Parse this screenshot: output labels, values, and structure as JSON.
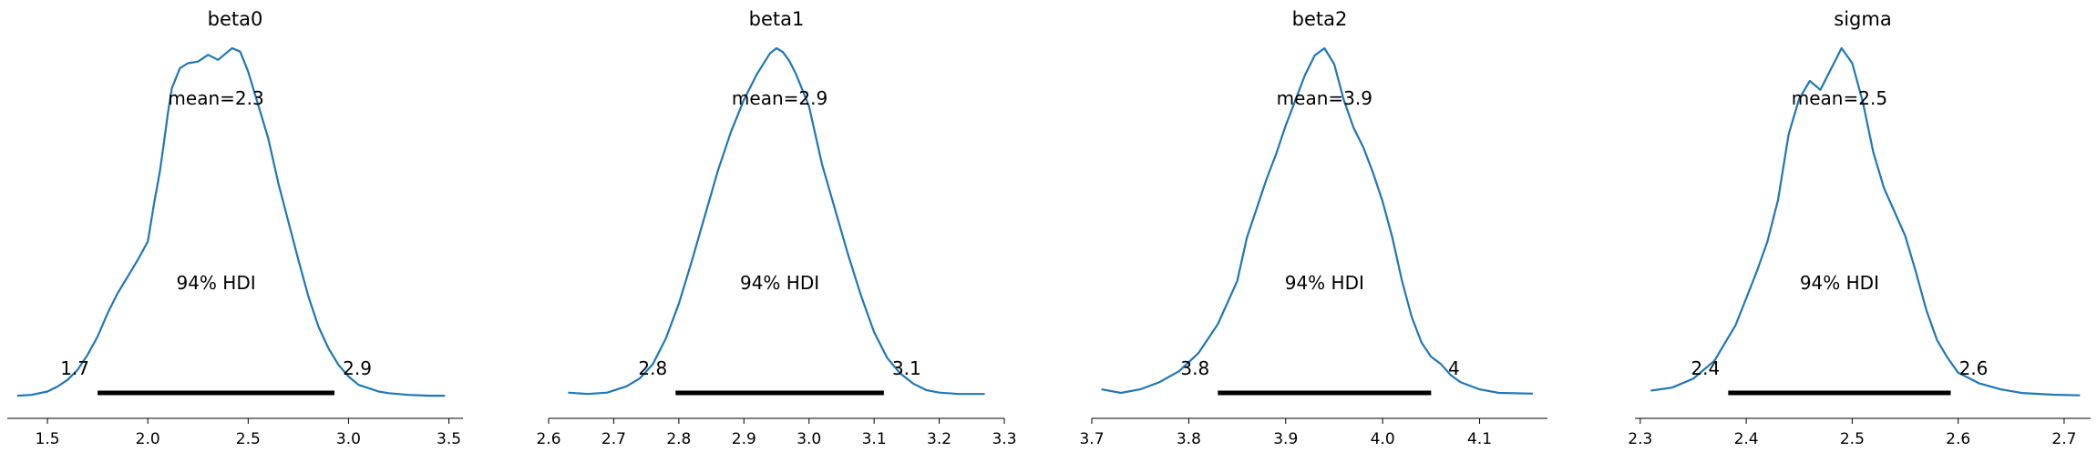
{
  "chart_data": [
    {
      "type": "area",
      "title": "beta0",
      "mean_label": "mean=2.3",
      "hdi_label": "94% HDI",
      "hdi_low_label": "1.7",
      "hdi_high_label": "2.9",
      "hdi": [
        1.75,
        2.93
      ],
      "xlim": [
        1.3,
        3.57
      ],
      "xticks": [
        1.5,
        2.0,
        2.5,
        3.0,
        3.5
      ],
      "xtick_labels": [
        "1.5",
        "2.0",
        "2.5",
        "3.0",
        "3.5"
      ],
      "x": [
        1.35,
        1.42,
        1.5,
        1.55,
        1.6,
        1.65,
        1.7,
        1.75,
        1.8,
        1.85,
        1.9,
        1.95,
        2.0,
        2.03,
        2.06,
        2.08,
        2.1,
        2.12,
        2.16,
        2.2,
        2.25,
        2.3,
        2.35,
        2.38,
        2.42,
        2.46,
        2.5,
        2.55,
        2.6,
        2.65,
        2.7,
        2.75,
        2.8,
        2.85,
        2.9,
        2.95,
        3.0,
        3.05,
        3.1,
        3.15,
        3.2,
        3.3,
        3.4,
        3.48
      ],
      "y": [
        0.005,
        0.01,
        0.03,
        0.06,
        0.1,
        0.16,
        0.25,
        0.36,
        0.5,
        0.62,
        0.72,
        0.82,
        0.93,
        1.15,
        1.35,
        1.52,
        1.7,
        1.85,
        1.97,
        2.0,
        2.01,
        2.05,
        2.02,
        2.05,
        2.09,
        2.07,
        1.95,
        1.75,
        1.55,
        1.28,
        1.05,
        0.82,
        0.6,
        0.42,
        0.29,
        0.19,
        0.12,
        0.07,
        0.05,
        0.03,
        0.02,
        0.01,
        0.005,
        0.005
      ]
    },
    {
      "type": "area",
      "title": "beta1",
      "mean_label": "mean=2.9",
      "hdi_label": "94% HDI",
      "hdi_low_label": "2.8",
      "hdi_high_label": "3.1",
      "hdi": [
        2.795,
        3.115
      ],
      "xlim": [
        2.6,
        3.3
      ],
      "xticks": [
        2.6,
        2.7,
        2.8,
        2.9,
        3.0,
        3.1,
        3.2,
        3.3
      ],
      "xtick_labels": [
        "2.6",
        "2.7",
        "2.8",
        "2.9",
        "3.0",
        "3.1",
        "3.2",
        "3.3"
      ],
      "x": [
        2.63,
        2.66,
        2.69,
        2.72,
        2.74,
        2.76,
        2.78,
        2.8,
        2.82,
        2.84,
        2.86,
        2.88,
        2.9,
        2.92,
        2.94,
        2.95,
        2.96,
        2.97,
        2.98,
        3.0,
        3.02,
        3.04,
        3.06,
        3.08,
        3.1,
        3.12,
        3.14,
        3.16,
        3.18,
        3.2,
        3.23,
        3.27
      ],
      "y": [
        0.03,
        0.02,
        0.03,
        0.08,
        0.14,
        0.25,
        0.45,
        0.72,
        1.05,
        1.4,
        1.75,
        2.05,
        2.3,
        2.5,
        2.66,
        2.7,
        2.67,
        2.6,
        2.5,
        2.25,
        1.8,
        1.45,
        1.1,
        0.78,
        0.5,
        0.3,
        0.18,
        0.1,
        0.05,
        0.03,
        0.02,
        0.02
      ]
    },
    {
      "type": "area",
      "title": "beta2",
      "mean_label": "mean=3.9",
      "hdi_label": "94% HDI",
      "hdi_low_label": "3.8",
      "hdi_high_label": "4",
      "hdi": [
        3.83,
        4.05
      ],
      "xlim": [
        3.7,
        4.17
      ],
      "xticks": [
        3.7,
        3.8,
        3.9,
        4.0,
        4.1
      ],
      "xtick_labels": [
        "3.7",
        "3.8",
        "3.9",
        "4.0",
        "4.1"
      ],
      "x": [
        3.71,
        3.73,
        3.75,
        3.77,
        3.79,
        3.81,
        3.83,
        3.85,
        3.86,
        3.87,
        3.88,
        3.89,
        3.9,
        3.91,
        3.92,
        3.93,
        3.94,
        3.95,
        3.96,
        3.97,
        3.98,
        3.99,
        4.0,
        4.01,
        4.02,
        4.03,
        4.04,
        4.05,
        4.06,
        4.07,
        4.08,
        4.1,
        4.12,
        4.155
      ],
      "y": [
        0.1,
        0.05,
        0.1,
        0.2,
        0.35,
        0.6,
        1.0,
        1.6,
        2.2,
        2.6,
        3.0,
        3.35,
        3.75,
        4.1,
        4.45,
        4.72,
        4.82,
        4.6,
        4.1,
        3.72,
        3.45,
        3.1,
        2.7,
        2.2,
        1.6,
        1.1,
        0.75,
        0.55,
        0.45,
        0.3,
        0.2,
        0.1,
        0.05,
        0.04
      ]
    },
    {
      "type": "area",
      "title": "sigma",
      "mean_label": "mean=2.5",
      "hdi_label": "94% HDI",
      "hdi_low_label": "2.4",
      "hdi_high_label": "2.6",
      "hdi": [
        2.383,
        2.593
      ],
      "xlim": [
        2.295,
        2.725
      ],
      "xticks": [
        2.3,
        2.4,
        2.5,
        2.6,
        2.7
      ],
      "xtick_labels": [
        "2.3",
        "2.4",
        "2.5",
        "2.6",
        "2.7"
      ],
      "x": [
        2.31,
        2.33,
        2.35,
        2.37,
        2.39,
        2.4,
        2.41,
        2.42,
        2.43,
        2.44,
        2.45,
        2.46,
        2.47,
        2.48,
        2.49,
        2.5,
        2.51,
        2.52,
        2.53,
        2.54,
        2.55,
        2.56,
        2.57,
        2.58,
        2.59,
        2.6,
        2.62,
        2.64,
        2.66,
        2.69,
        2.715
      ],
      "y": [
        0.1,
        0.15,
        0.3,
        0.6,
        1.2,
        1.65,
        2.1,
        2.6,
        3.3,
        4.4,
        5.0,
        5.3,
        5.15,
        5.5,
        5.85,
        5.6,
        4.95,
        4.1,
        3.5,
        3.1,
        2.7,
        2.1,
        1.45,
        0.95,
        0.65,
        0.4,
        0.22,
        0.12,
        0.06,
        0.03,
        0.02
      ]
    }
  ]
}
